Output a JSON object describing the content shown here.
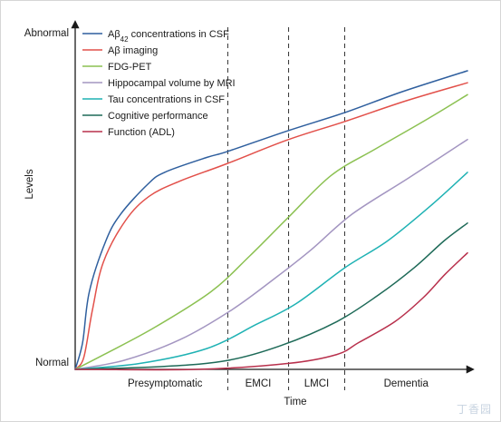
{
  "chart_data": {
    "type": "line",
    "title": "",
    "xlabel": "Time",
    "ylabel": "Levels",
    "y_top_label": "Abnormal",
    "y_bottom_label": "Normal",
    "x_range": [
      0,
      100
    ],
    "y_range": [
      0,
      100
    ],
    "grid": false,
    "legend_position": "top-left",
    "phases": [
      {
        "label": "Presymptomatic",
        "start": 0,
        "end": 38.9
      },
      {
        "label": "EMCI",
        "start": 38.9,
        "end": 54.4
      },
      {
        "label": "LMCI",
        "start": 54.4,
        "end": 68.7
      },
      {
        "label": "Dementia",
        "start": 68.7,
        "end": 100
      }
    ],
    "series": [
      {
        "name": "Aβ42 concentrations in CSF",
        "name_main": "Aβ",
        "name_sub": "42",
        "name_rest": " concentrations in CSF",
        "color": "#2f5f9e",
        "points": [
          [
            0,
            0
          ],
          [
            1.9,
            9
          ],
          [
            3.6,
            26
          ],
          [
            7.8,
            43
          ],
          [
            11.6,
            52
          ],
          [
            18.5,
            62
          ],
          [
            22.8,
            66
          ],
          [
            33.6,
            71
          ],
          [
            38.9,
            73
          ],
          [
            54.4,
            80
          ],
          [
            68.7,
            86
          ],
          [
            83.4,
            93
          ],
          [
            100,
            100
          ]
        ]
      },
      {
        "name": "Aβ imaging",
        "name_main": "Aβ imaging",
        "name_sub": "",
        "name_rest": "",
        "color": "#e2504a",
        "points": [
          [
            0,
            0
          ],
          [
            2.2,
            4
          ],
          [
            4.4,
            20
          ],
          [
            7.2,
            36
          ],
          [
            12.9,
            50
          ],
          [
            18.9,
            58
          ],
          [
            26.6,
            63
          ],
          [
            38.9,
            69
          ],
          [
            54.4,
            77
          ],
          [
            68.7,
            83
          ],
          [
            84.5,
            90
          ],
          [
            100,
            96
          ]
        ]
      },
      {
        "name": "FDG-PET",
        "name_main": "FDG-PET",
        "name_sub": "",
        "name_rest": "",
        "color": "#8cc152",
        "points": [
          [
            0,
            0
          ],
          [
            7.4,
            5
          ],
          [
            20.2,
            14
          ],
          [
            34.6,
            26
          ],
          [
            44.5,
            38
          ],
          [
            54.4,
            51
          ],
          [
            65.3,
            65
          ],
          [
            76.8,
            74
          ],
          [
            90,
            84
          ],
          [
            100,
            92
          ]
        ]
      },
      {
        "name": "Hippocampal volume by MRI",
        "name_main": "Hippocampal volume by MRI",
        "name_sub": "",
        "name_rest": "",
        "color": "#a395c1",
        "points": [
          [
            0,
            0
          ],
          [
            12.4,
            3
          ],
          [
            26.8,
            10
          ],
          [
            40,
            20
          ],
          [
            51.4,
            31
          ],
          [
            60.1,
            40
          ],
          [
            70.6,
            52
          ],
          [
            84.9,
            64
          ],
          [
            100,
            77
          ]
        ]
      },
      {
        "name": "Tau concentrations in CSF",
        "name_main": "Tau concentrations in CSF",
        "name_sub": "",
        "name_rest": "",
        "color": "#1fb2b4",
        "points": [
          [
            0,
            0
          ],
          [
            16.6,
            2
          ],
          [
            33.6,
            7
          ],
          [
            46.1,
            15
          ],
          [
            56.3,
            22
          ],
          [
            68.7,
            34
          ],
          [
            79.6,
            43
          ],
          [
            90.8,
            55
          ],
          [
            100,
            66
          ]
        ]
      },
      {
        "name": "Cognitive performance",
        "name_main": "Cognitive performance",
        "name_sub": "",
        "name_rest": "",
        "color": "#1e6a58",
        "points": [
          [
            0,
            0
          ],
          [
            22.8,
            1
          ],
          [
            38.9,
            3
          ],
          [
            52.5,
            8
          ],
          [
            66.7,
            16
          ],
          [
            77.4,
            25
          ],
          [
            86.4,
            34
          ],
          [
            94,
            43
          ],
          [
            100,
            49
          ]
        ]
      },
      {
        "name": "Function (ADL)",
        "name_main": "Function (ADL)",
        "name_sub": "",
        "name_rest": "",
        "color": "#b8304c",
        "points": [
          [
            0,
            0
          ],
          [
            31.1,
            0
          ],
          [
            54.4,
            2
          ],
          [
            66.7,
            5
          ],
          [
            72.3,
            9
          ],
          [
            81.5,
            16
          ],
          [
            88.7,
            24
          ],
          [
            94.4,
            32
          ],
          [
            100,
            39
          ]
        ]
      }
    ]
  },
  "watermark": "丁香园"
}
